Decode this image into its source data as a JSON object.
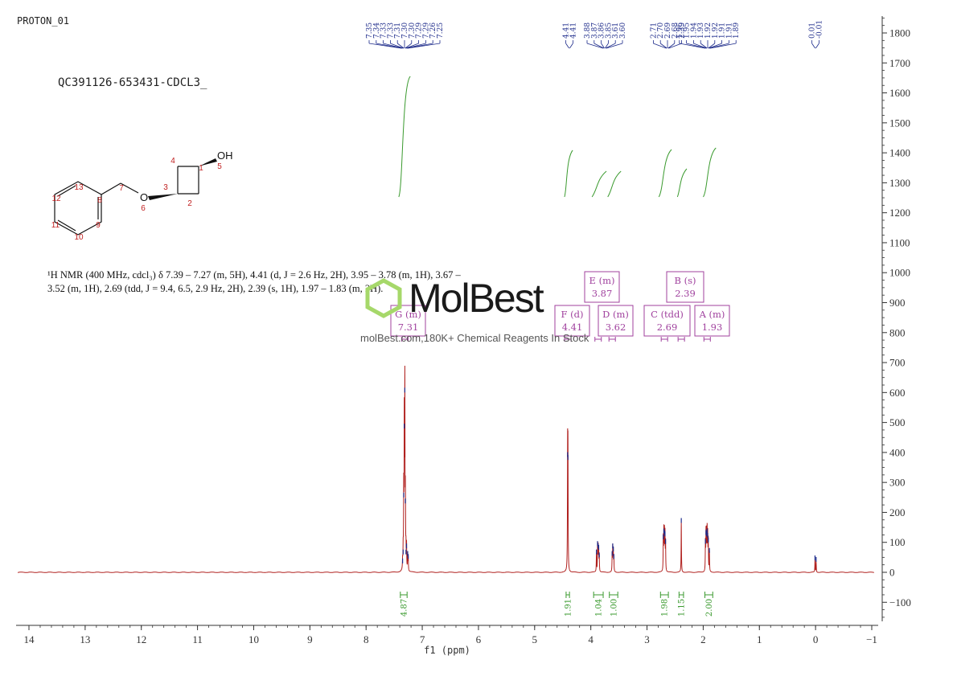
{
  "header": {
    "experiment": "PROTON_01",
    "sample": "QC391126-653431-CDCL3_"
  },
  "nmr_description": {
    "line1": "¹H NMR (400 MHz, cdcl₃) δ 7.39 – 7.27 (m, 5H), 4.41 (d, J = 2.6 Hz, 2H), 3.95 – 3.78 (m, 1H), 3.67 –",
    "line2": "3.52 (m, 1H), 2.69 (tdd, J = 9.4, 6.5, 2.9 Hz, 2H), 2.39 (s, 1H), 1.97 – 1.83 (m, 2H)."
  },
  "watermark": {
    "brand": "MolBest",
    "tagline": "molBest.com,180K+ Chemical Reagents In Stock"
  },
  "structure": {
    "substituent": "OH",
    "ether_o": "O",
    "atom_numbers": [
      "1",
      "2",
      "3",
      "4",
      "5",
      "6",
      "7",
      "8",
      "9",
      "10",
      "11",
      "12",
      "13"
    ]
  },
  "colors": {
    "spectrum": "#b0201e",
    "peak_marks": "#1c2a8a",
    "integral": "#3a9a2e",
    "multiplet_box": "#a0419e",
    "atom_number": "#c02020"
  },
  "chart_data": {
    "type": "line",
    "xlabel": "f1 (ppm)",
    "xlim": [
      14.2,
      -1.0
    ],
    "ylim": [
      -160,
      1850
    ],
    "x_ticks": [
      14,
      13,
      12,
      11,
      10,
      9,
      8,
      7,
      6,
      5,
      4,
      3,
      2,
      1,
      0,
      -1
    ],
    "y_ticks": [
      1800,
      1700,
      1600,
      1500,
      1400,
      1300,
      1200,
      1100,
      1000,
      900,
      800,
      700,
      600,
      500,
      400,
      300,
      200,
      100,
      0,
      -100
    ],
    "grid": false,
    "peaks": [
      {
        "ppm": 7.35,
        "height": 30
      },
      {
        "ppm": 7.34,
        "height": 60
      },
      {
        "ppm": 7.33,
        "height": 250
      },
      {
        "ppm": 7.32,
        "height": 480
      },
      {
        "ppm": 7.31,
        "height": 600
      },
      {
        "ppm": 7.3,
        "height": 230
      },
      {
        "ppm": 7.29,
        "height": 60
      },
      {
        "ppm": 7.28,
        "height": 80
      },
      {
        "ppm": 7.26,
        "height": 55
      },
      {
        "ppm": 7.25,
        "height": 45
      },
      {
        "ppm": 4.413,
        "height": 385
      },
      {
        "ppm": 4.407,
        "height": 375
      },
      {
        "ppm": 3.9,
        "height": 60
      },
      {
        "ppm": 3.88,
        "height": 88
      },
      {
        "ppm": 3.87,
        "height": 80
      },
      {
        "ppm": 3.86,
        "height": 75
      },
      {
        "ppm": 3.85,
        "height": 50
      },
      {
        "ppm": 3.62,
        "height": 55
      },
      {
        "ppm": 3.61,
        "height": 80
      },
      {
        "ppm": 3.6,
        "height": 70
      },
      {
        "ppm": 3.59,
        "height": 45
      },
      {
        "ppm": 2.71,
        "height": 110
      },
      {
        "ppm": 2.7,
        "height": 130
      },
      {
        "ppm": 2.69,
        "height": 125
      },
      {
        "ppm": 2.68,
        "height": 120
      },
      {
        "ppm": 2.67,
        "height": 95
      },
      {
        "ppm": 2.39,
        "height": 165
      },
      {
        "ppm": 1.96,
        "height": 95
      },
      {
        "ppm": 1.95,
        "height": 125
      },
      {
        "ppm": 1.94,
        "height": 120
      },
      {
        "ppm": 1.93,
        "height": 130
      },
      {
        "ppm": 1.92,
        "height": 115
      },
      {
        "ppm": 1.91,
        "height": 100
      },
      {
        "ppm": 1.89,
        "height": 65
      },
      {
        "ppm": 0.01,
        "height": 40
      },
      {
        "ppm": -0.01,
        "height": 35
      }
    ],
    "peak_labels": [
      {
        "group": "aromatic",
        "labels": [
          "7.35",
          "7.34",
          "7.33",
          "7.33",
          "7.31",
          "7.30",
          "7.30",
          "7.29",
          "7.29",
          "7.26",
          "7.25"
        ]
      },
      {
        "group": "F",
        "labels": [
          "4.41",
          "4.41"
        ]
      },
      {
        "group": "E-D",
        "labels": [
          "3.88",
          "3.87",
          "3.86",
          "3.85",
          "3.61",
          "3.60"
        ]
      },
      {
        "group": "C-B",
        "labels": [
          "2.71",
          "2.70",
          "2.69",
          "2.68",
          "2.39"
        ]
      },
      {
        "group": "A",
        "labels": [
          "1.96",
          "1.95",
          "1.94",
          "1.93",
          "1.92",
          "1.92",
          "1.91",
          "1.91",
          "1.89"
        ]
      },
      {
        "group": "TMS",
        "labels": [
          "0.01",
          "-0.01"
        ]
      }
    ],
    "multiplets": [
      {
        "label": "E (m)",
        "shift": "3.87"
      },
      {
        "label": "B (s)",
        "shift": "2.39"
      },
      {
        "label": "G (m)",
        "shift": "7.31"
      },
      {
        "label": "F (d)",
        "shift": "4.41"
      },
      {
        "label": "D (m)",
        "shift": "3.62"
      },
      {
        "label": "C (tdd)",
        "shift": "2.69"
      },
      {
        "label": "A (m)",
        "shift": "1.93"
      }
    ],
    "integrals": [
      {
        "from": 7.39,
        "to": 7.27,
        "value": "4.87"
      },
      {
        "from": 4.44,
        "to": 4.38,
        "value": "1.91"
      },
      {
        "from": 3.95,
        "to": 3.78,
        "value": "1.04"
      },
      {
        "from": 3.67,
        "to": 3.52,
        "value": "1.00"
      },
      {
        "from": 2.76,
        "to": 2.62,
        "value": "1.98"
      },
      {
        "from": 2.43,
        "to": 2.35,
        "value": "1.15"
      },
      {
        "from": 1.97,
        "to": 1.83,
        "value": "2.00"
      }
    ]
  }
}
